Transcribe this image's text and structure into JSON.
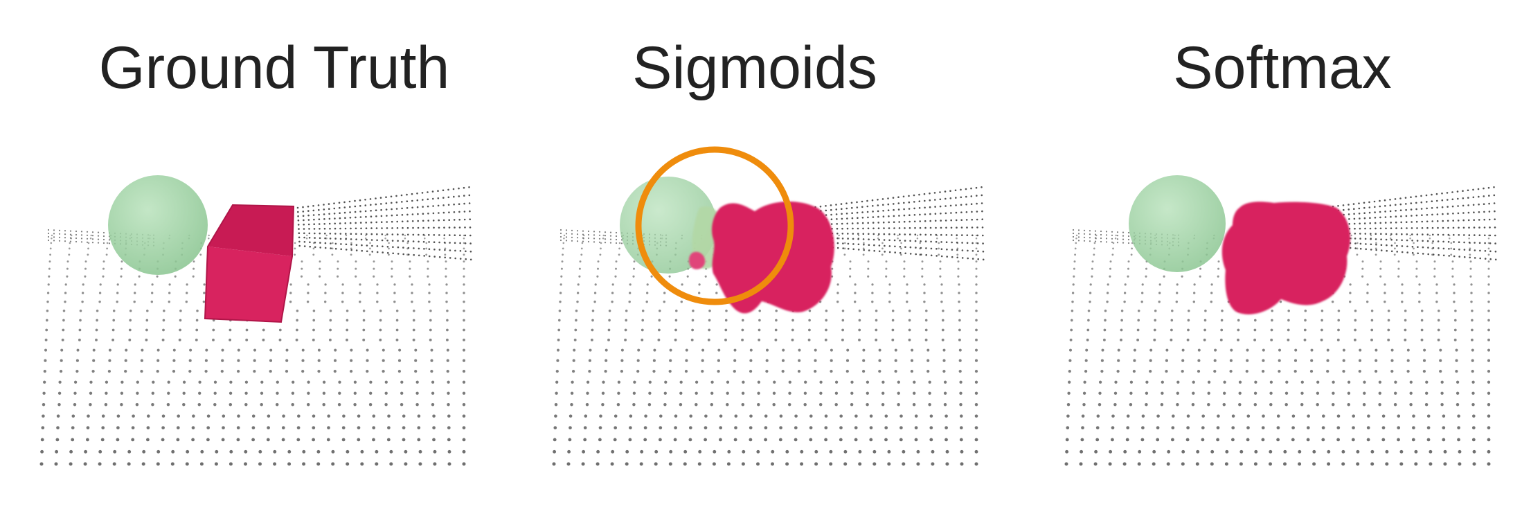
{
  "panels": [
    {
      "title": "Ground Truth"
    },
    {
      "title": "Sigmoids"
    },
    {
      "title": "Softmax"
    }
  ],
  "colors": {
    "sphere": "#9fd4a4",
    "box": "#d8235f",
    "points": "#555555",
    "highlight": "#ef8c0c",
    "title": "#222222"
  }
}
